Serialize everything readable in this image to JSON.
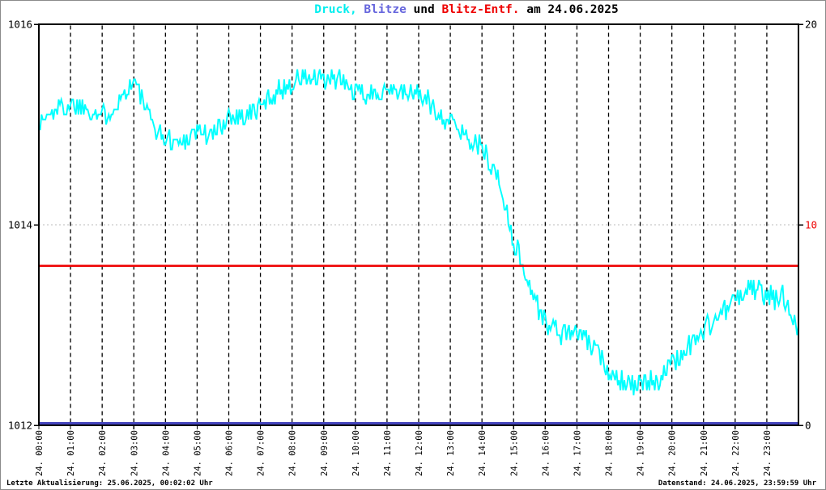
{
  "footer": {
    "left": "Letzte Aktualisierung: 25.06.2025, 00:02:02 Uhr",
    "right": "Datenstand: 24.06.2025, 23:59:59 Uhr"
  },
  "chart_data": {
    "type": "line",
    "title": "Druck, Blitze und Blitz-Entf. am 24.06.2025",
    "title_parts": [
      {
        "text": "Druck,",
        "color": "#00eeee"
      },
      {
        "text": " Blitze",
        "color": "#6666dd"
      },
      {
        "text": " und ",
        "color": "#000000"
      },
      {
        "text": "Blitz-Entf.",
        "color": "#ee0000"
      },
      {
        "text": " am 24.06.2025",
        "color": "#000000"
      }
    ],
    "grid": {
      "vertical": "dashed black line every hour",
      "horizontal": "dotted gray line at 1014 hPa / 10"
    },
    "x_axis": {
      "hours": 24,
      "tick_labels": [
        "24. 00:00",
        "24. 01:00",
        "24. 02:00",
        "24. 03:00",
        "24. 04:00",
        "24. 05:00",
        "24. 06:00",
        "24. 07:00",
        "24. 08:00",
        "24. 09:00",
        "24. 10:00",
        "24. 11:00",
        "24. 12:00",
        "24. 13:00",
        "24. 14:00",
        "24. 15:00",
        "24. 16:00",
        "24. 17:00",
        "24. 18:00",
        "24. 19:00",
        "24. 20:00",
        "24. 21:00",
        "24. 22:00",
        "24. 23:00"
      ]
    },
    "y_left": {
      "min": 1012,
      "max": 1016,
      "gridline_value": 1014,
      "ticks": [
        {
          "label": "1016",
          "value": 1016,
          "color": "#000000"
        },
        {
          "label": "1014",
          "value": 1014,
          "color": "#000000"
        },
        {
          "label": "1012",
          "value": 1012,
          "color": "#000000"
        }
      ]
    },
    "y_right": {
      "min": 0,
      "max": 20,
      "ticks": [
        {
          "label": "20",
          "value": 20,
          "color": "#000000"
        },
        {
          "label": "10",
          "value": 10,
          "color": "#ee0000"
        },
        {
          "label": "0",
          "value": 0,
          "color": "#000000"
        }
      ]
    },
    "series": [
      {
        "name": "Druck",
        "unit": "hPa",
        "axis": "left",
        "color": "#00ffff",
        "style": "noisy-trace",
        "sample_interval_hours": 0.5,
        "noise_band_hpa": 0.11,
        "quantize_hpa": 0.05,
        "values": [
          1015.0,
          1015.15,
          1015.2,
          1015.18,
          1015.08,
          1015.22,
          1015.45,
          1015.05,
          1014.85,
          1014.82,
          1014.95,
          1014.88,
          1015.1,
          1015.08,
          1015.18,
          1015.32,
          1015.42,
          1015.48,
          1015.42,
          1015.45,
          1015.32,
          1015.28,
          1015.38,
          1015.3,
          1015.32,
          1015.15,
          1015.02,
          1014.9,
          1014.75,
          1014.48,
          1013.85,
          1013.4,
          1013.02,
          1012.92,
          1012.92,
          1012.78,
          1012.55,
          1012.45,
          1012.38,
          1012.45,
          1012.6,
          1012.78,
          1012.95,
          1013.1,
          1013.25,
          1013.38,
          1013.28,
          1013.28,
          1013.0
        ]
      },
      {
        "name": "Blitze",
        "axis": "right",
        "color": "#4343bc",
        "style": "constant-line",
        "constant_value": 0
      },
      {
        "name": "Blitz-Entf.",
        "axis": "right",
        "color": "#ee0000",
        "style": "constant-line",
        "constant_value": 7.95
      }
    ]
  }
}
